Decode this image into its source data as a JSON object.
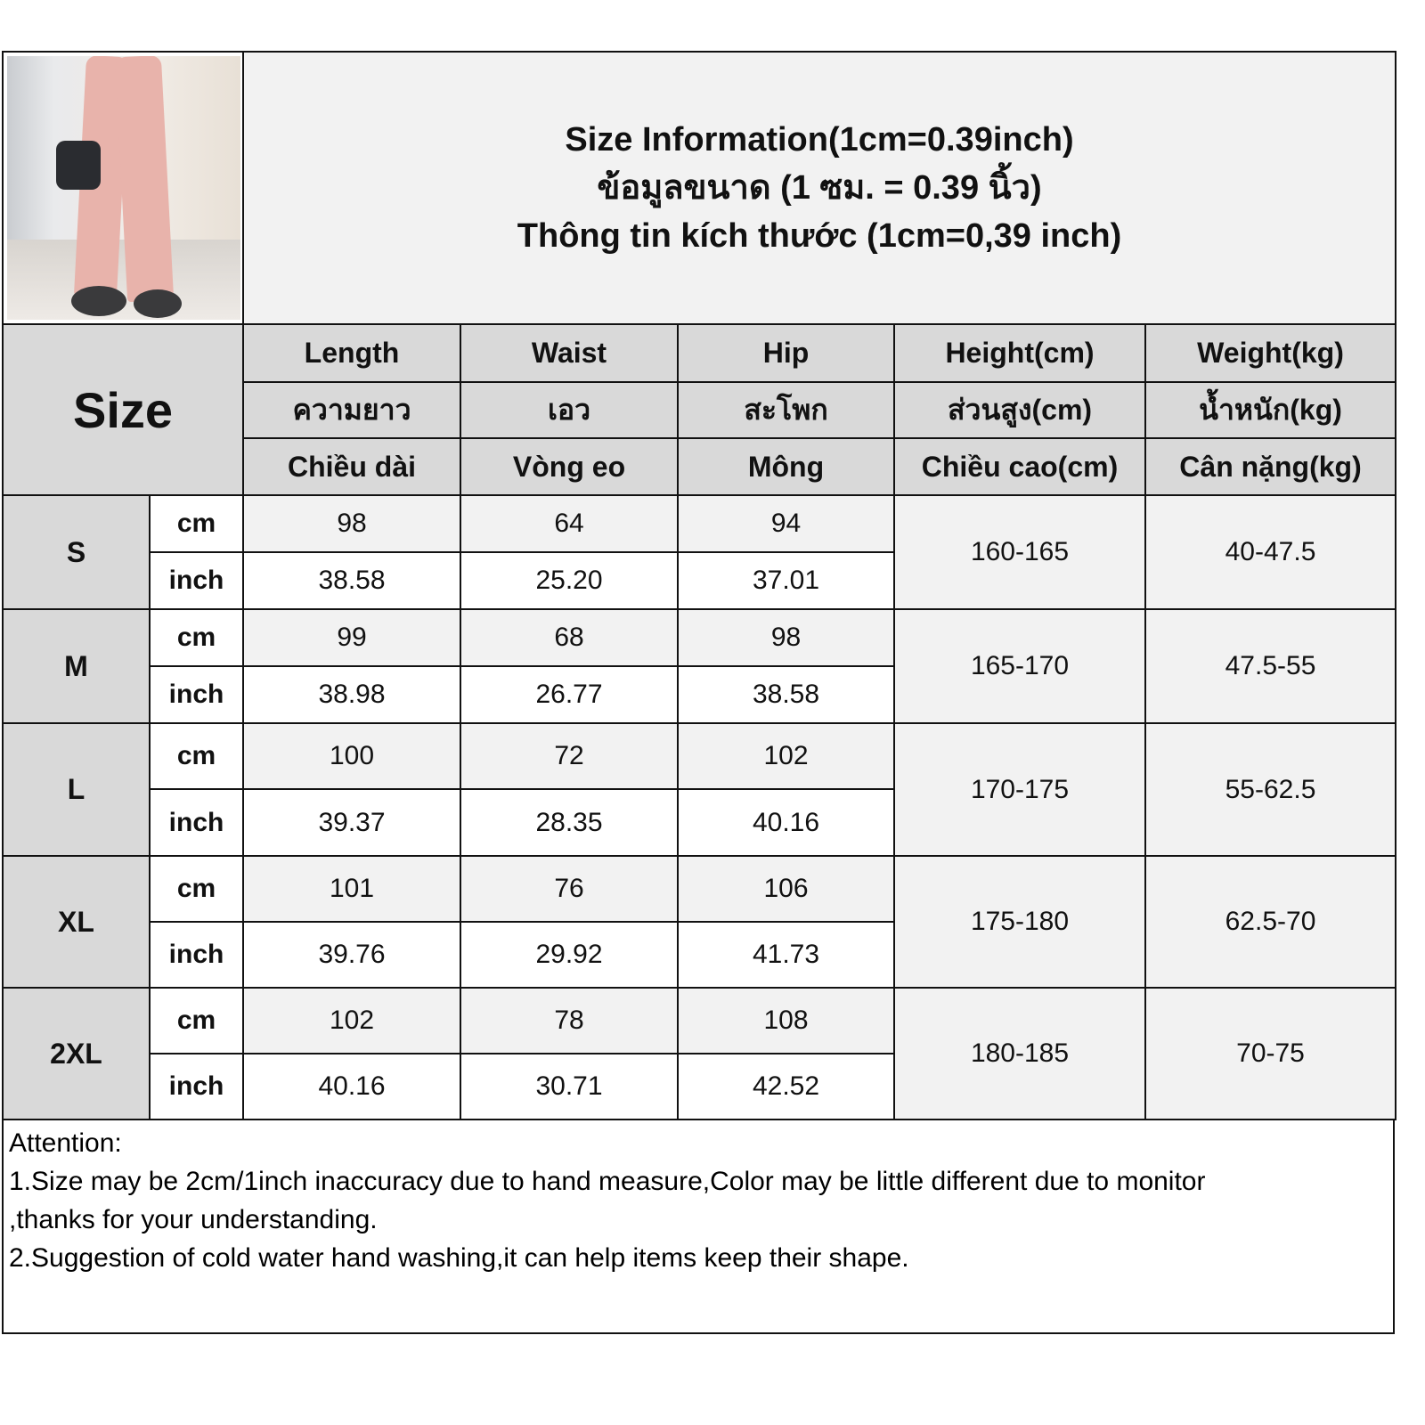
{
  "title": {
    "line1": "Size Information(1cm=0.39inch)",
    "line2": "ข้อมูลขนาด (1 ซม. = 0.39 นิ้ว)",
    "line3": "Thông tin kích thước (1cm=0,39 inch)"
  },
  "size_header": "Size",
  "columns": [
    {
      "en": "Length",
      "th": "ความยาว",
      "vi": "Chiều dài"
    },
    {
      "en": "Waist",
      "th": "เอว",
      "vi": "Vòng eo"
    },
    {
      "en": "Hip",
      "th": "สะโพก",
      "vi": "Mông"
    },
    {
      "en": "Height(cm)",
      "th": "ส่วนสูง(cm)",
      "vi": "Chiều cao(cm)"
    },
    {
      "en": "Weight(kg)",
      "th": "น้ำหนัก(kg)",
      "vi": "Cân nặng(kg)"
    }
  ],
  "unit_labels": {
    "cm": "cm",
    "inch": "inch"
  },
  "rows": [
    {
      "size": "S",
      "cm": [
        "98",
        "64",
        "94"
      ],
      "inch": [
        "38.58",
        "25.20",
        "37.01"
      ],
      "height": "160-165",
      "weight": "40-47.5"
    },
    {
      "size": "M",
      "cm": [
        "99",
        "68",
        "98"
      ],
      "inch": [
        "38.98",
        "26.77",
        "38.58"
      ],
      "height": "165-170",
      "weight": "47.5-55"
    },
    {
      "size": "L",
      "cm": [
        "100",
        "72",
        "102"
      ],
      "inch": [
        "39.37",
        "28.35",
        "40.16"
      ],
      "height": "170-175",
      "weight": "55-62.5"
    },
    {
      "size": "XL",
      "cm": [
        "101",
        "76",
        "106"
      ],
      "inch": [
        "39.76",
        "29.92",
        "41.73"
      ],
      "height": "175-180",
      "weight": "62.5-70"
    },
    {
      "size": "2XL",
      "cm": [
        "102",
        "78",
        "108"
      ],
      "inch": [
        "40.16",
        "30.71",
        "42.52"
      ],
      "height": "180-185",
      "weight": "70-75"
    }
  ],
  "notes": {
    "heading": "Attention:",
    "line1": "1.Size may be 2cm/1inch inaccuracy due to hand measure,Color may be little different due to monitor",
    "line1b": ",thanks for your understanding.",
    "line2": "2.Suggestion of cold water hand washing,it can help items keep their shape."
  },
  "colors": {
    "header_gray": "#d9d9d9",
    "light_gray": "#f2f2f2",
    "border": "#111111"
  }
}
